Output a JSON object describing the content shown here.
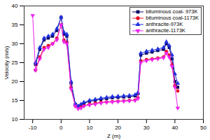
{
  "chart_data": {
    "type": "line",
    "x_label": "Z (m)",
    "y_label": "Velocity (m/s)",
    "xlim": [
      -13,
      50
    ],
    "xticks": [
      -10,
      0,
      10,
      20,
      30,
      40,
      50
    ],
    "ylim": [
      10,
      40
    ],
    "yticks": [
      10,
      15,
      20,
      25,
      30,
      35,
      40
    ],
    "grid": false,
    "legend": "top-right",
    "x": [
      -10,
      -9,
      -7.5,
      -6,
      -4.5,
      -3,
      -1.5,
      0,
      1,
      2,
      3.5,
      5,
      6,
      7,
      8,
      10,
      12,
      14,
      16,
      18,
      20,
      22,
      24,
      26,
      27,
      28,
      30,
      32,
      34,
      36,
      37,
      38,
      39,
      40,
      41
    ],
    "series": [
      {
        "name": "bituminous coal- 973K",
        "color": "#000066",
        "marker": "square",
        "values": [
          null,
          24.5,
          28.5,
          31,
          31.5,
          32,
          33.5,
          37,
          32.5,
          32,
          19.5,
          14,
          13.5,
          13.8,
          14.2,
          14.8,
          15,
          15.3,
          15.5,
          15.7,
          15.8,
          15.9,
          16,
          16.2,
          16.8,
          27,
          27.5,
          27.8,
          28.2,
          28.5,
          30,
          29,
          26,
          20,
          18.5
        ]
      },
      {
        "name": "bituminous coal-1173K",
        "color": "#e8102a",
        "marker": "circle",
        "values": [
          null,
          23,
          26.5,
          29,
          29.5,
          30,
          31.5,
          35,
          31,
          30.5,
          18.5,
          13.5,
          13,
          13.2,
          13.6,
          14,
          14.3,
          14.5,
          14.6,
          14.7,
          14.8,
          14.9,
          15,
          15.1,
          15.7,
          25.5,
          25.8,
          26,
          26.2,
          26.5,
          28,
          27,
          24.5,
          19,
          17.5
        ]
      },
      {
        "name": "anthracite-973K",
        "color": "#2030e0",
        "marker": "triangle",
        "values": [
          null,
          25,
          29,
          31.5,
          32,
          32.5,
          34,
          37,
          33,
          32.5,
          20,
          14,
          13.5,
          14,
          14.5,
          15,
          15.3,
          15.6,
          15.8,
          16,
          16.1,
          16.2,
          16.3,
          16.5,
          17,
          27.5,
          28,
          28.3,
          28.6,
          29,
          30.5,
          29.5,
          27,
          22,
          19.5
        ]
      },
      {
        "name": "anthracite-1173K",
        "color": "#ee22ee",
        "marker": "triangle-down",
        "values": [
          37.5,
          23,
          26,
          28.5,
          29,
          30,
          31,
          35,
          30.5,
          30,
          18,
          13.5,
          12.8,
          13,
          13.5,
          13.8,
          14,
          14.3,
          14.5,
          14.6,
          14.7,
          14.8,
          14.9,
          15,
          15.5,
          25,
          25.5,
          25.8,
          26,
          26.3,
          27.5,
          26.5,
          24,
          18.5,
          13
        ]
      }
    ]
  }
}
